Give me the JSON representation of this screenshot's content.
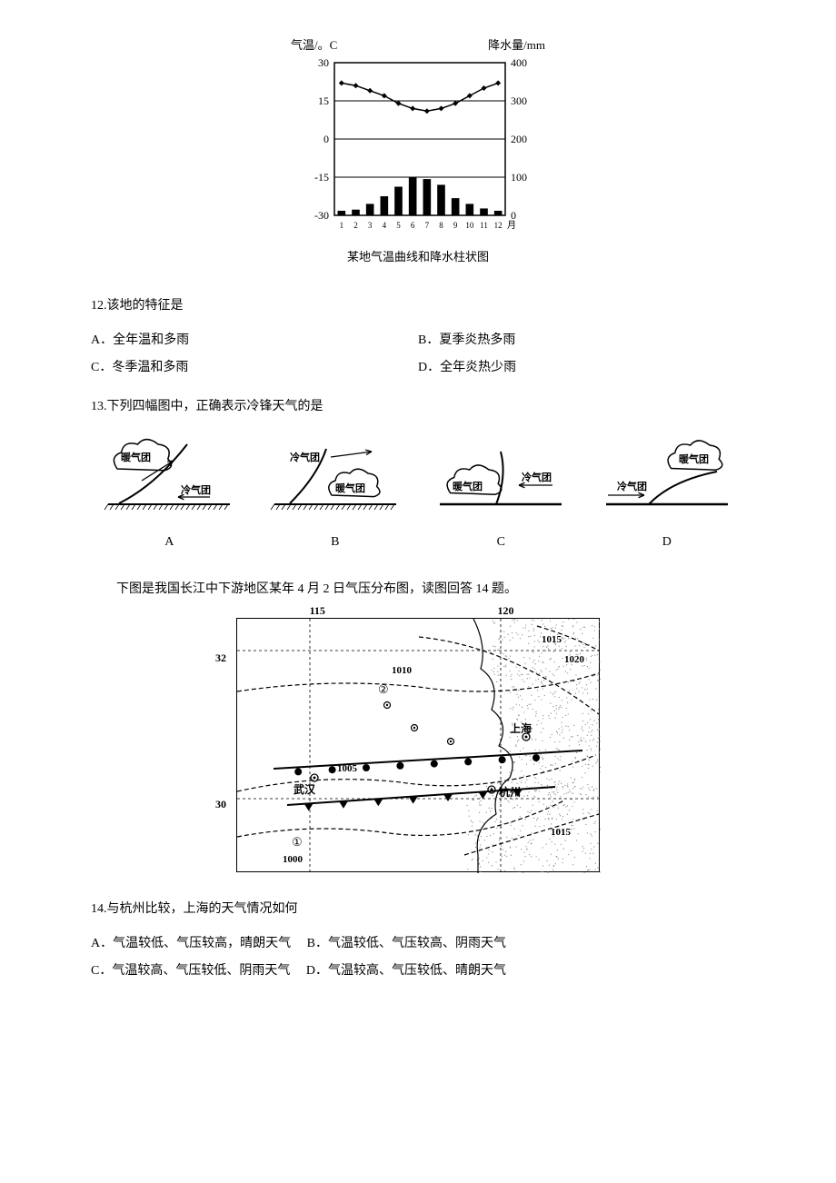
{
  "climate_chart": {
    "y1_label": "气温/。C",
    "y2_label": "降水量/mm",
    "caption": "某地气温曲线和降水柱状图",
    "x_months": [
      "1",
      "2",
      "3",
      "4",
      "5",
      "6",
      "7",
      "8",
      "9",
      "10",
      "11",
      "12"
    ],
    "x_suffix": "月",
    "temp_axis": {
      "min": -30,
      "max": 30,
      "ticks": [
        -30,
        -15,
        0,
        15,
        30
      ]
    },
    "precip_axis": {
      "min": 0,
      "max": 400,
      "ticks": [
        0,
        100,
        200,
        300,
        400
      ]
    },
    "temp_values": [
      22,
      21,
      19,
      17,
      14,
      12,
      11,
      12,
      14,
      17,
      20,
      22
    ],
    "precip_values": [
      12,
      15,
      30,
      50,
      75,
      100,
      95,
      80,
      45,
      30,
      18,
      12
    ],
    "colors": {
      "axis": "#000000",
      "line": "#000000",
      "bars": "#000000",
      "bg": "#ffffff"
    },
    "font_size": 12
  },
  "q12": {
    "text": "12.该地的特征是",
    "A": "A．全年温和多雨",
    "B": "B．夏季炎热多雨",
    "C": "C．冬季温和多雨",
    "D": "D．全年炎热少雨"
  },
  "q13": {
    "text": "13.下列四幅图中，正确表示冷锋天气的是",
    "labels": {
      "A": "A",
      "B": "B",
      "C": "C",
      "D": "D"
    },
    "warm_label": "暖气团",
    "cold_label": "冷气团"
  },
  "context14": "下图是我国长江中下游地区某年 4 月 2 日气压分布图，读图回答 14 题。",
  "pressure_map": {
    "lon_labels": [
      {
        "text": "115",
        "left_pct": 20
      },
      {
        "text": "120",
        "left_pct": 72
      }
    ],
    "lat_labels": [
      {
        "text": "32",
        "top_pct": 12
      },
      {
        "text": "30",
        "top_pct": 70
      }
    ],
    "isobars": [
      "1000",
      "1005",
      "1010",
      "1015",
      "1020"
    ],
    "cities": {
      "wh": "武汉",
      "hz": "杭州",
      "sh": "上海"
    },
    "markers": [
      "①",
      "②"
    ],
    "colors": {
      "land": "#ffffff",
      "sea": "#888888",
      "line": "#000000"
    }
  },
  "q14": {
    "text": "14.与杭州比较，上海的天气情况如何",
    "A": "A．气温较低、气压较高，晴朗天气",
    "B": "B．气温较低、气压较高、阴雨天气",
    "C": "C．气温较高、气压较低、阴雨天气",
    "D": "D．气温较高、气压较低、晴朗天气"
  }
}
